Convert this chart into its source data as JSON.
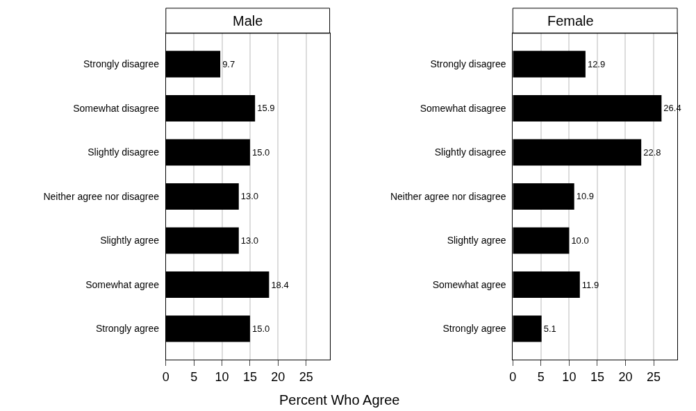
{
  "chart_data": [
    {
      "type": "bar",
      "orientation": "horizontal",
      "title": "Male",
      "xlabel": "Percent Who Agree",
      "categories": [
        "Strongly disagree",
        "Somewhat disagree",
        "Slightly disagree",
        "Neither agree nor disagree",
        "Slightly agree",
        "Somewhat agree",
        "Strongly agree"
      ],
      "values": [
        9.7,
        15.9,
        15.0,
        13.0,
        13.0,
        18.4,
        15.0
      ],
      "value_labels": [
        "9.7",
        "15.9",
        "15.0",
        "13.0",
        "13.0",
        "18.4",
        "15.0"
      ],
      "color": "#000000",
      "xlim": [
        0,
        29.2
      ],
      "xticks": [
        0,
        5,
        10,
        15,
        20,
        25
      ],
      "grid": "x"
    },
    {
      "type": "bar",
      "orientation": "horizontal",
      "title": "Female",
      "categories": [
        "Strongly disagree",
        "Somewhat disagree",
        "Slightly disagree",
        "Neither agree nor disagree",
        "Slightly agree",
        "Somewhat agree",
        "Strongly agree"
      ],
      "values": [
        12.9,
        26.4,
        22.8,
        10.9,
        10.0,
        11.9,
        5.1
      ],
      "value_labels": [
        "12.9",
        "26.4",
        "22.8",
        "10.9",
        "10.0",
        "11.9",
        "5.1"
      ],
      "color": "#000000",
      "xlim": [
        0,
        29.2
      ],
      "xticks": [
        0,
        5,
        10,
        15,
        20,
        25
      ],
      "grid": "x"
    }
  ]
}
